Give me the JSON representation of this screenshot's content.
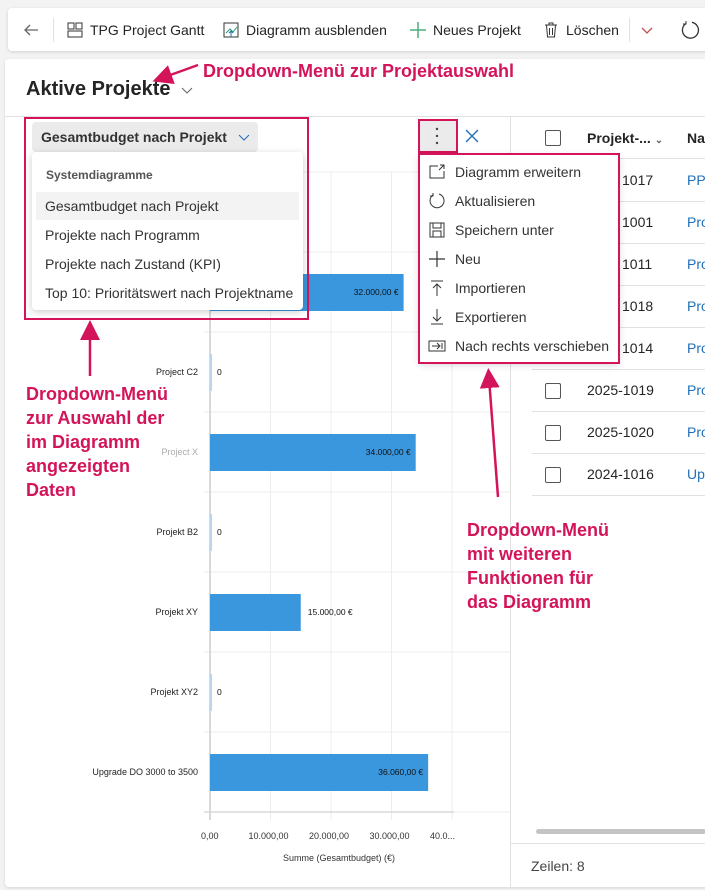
{
  "toolbar": {
    "items": [
      {
        "label": "TPG Project Gantt",
        "icon": "gantt-icon"
      },
      {
        "label": "Diagramm ausblenden",
        "icon": "chart-hide-icon"
      },
      {
        "label": "Neues Projekt",
        "icon": "plus-icon"
      },
      {
        "label": "Löschen",
        "icon": "trash-icon"
      }
    ]
  },
  "view": {
    "title": "Aktive Projekte"
  },
  "chart_selector": {
    "selected": "Gesamtbudget nach Projekt",
    "group_header": "Systemdiagramme",
    "options": [
      "Gesamtbudget nach Projekt",
      "Projekte nach Programm",
      "Projekte nach Zustand (KPI)",
      "Top 10: Prioritätswert nach Projektname"
    ]
  },
  "chart_menu": {
    "items": [
      {
        "label": "Diagramm erweitern",
        "icon": "expand-icon"
      },
      {
        "label": "Aktualisieren",
        "icon": "refresh-icon"
      },
      {
        "label": "Speichern unter",
        "icon": "save-icon"
      },
      {
        "label": "Neu",
        "icon": "plus-icon"
      },
      {
        "label": "Importieren",
        "icon": "import-icon"
      },
      {
        "label": "Exportieren",
        "icon": "export-icon"
      },
      {
        "label": "Nach rechts verschieben",
        "icon": "move-right-icon"
      }
    ]
  },
  "annotations": {
    "project_select": "Dropdown-Menü zur Projektauswahl",
    "data_select": [
      "Dropdown-Menü",
      "zur Auswahl der",
      "im Diagramm",
      "angezeigten",
      "Daten"
    ],
    "more_functions": [
      "Dropdown-Menü",
      "mit weiteren",
      "Funktionen für",
      "das Diagramm"
    ],
    "color": "#d4145a"
  },
  "chart_data": {
    "type": "bar",
    "orientation": "horizontal",
    "categories": [
      "",
      "Project C2",
      "Project X",
      "Projekt B2",
      "Projekt XY",
      "Projekt XY2",
      "Upgrade DO 3000 to 3500"
    ],
    "values": [
      32000,
      0,
      34000,
      0,
      15000,
      0,
      36060
    ],
    "data_labels": [
      "32.000,00 €",
      "0",
      "34.000,00 €",
      "0",
      "15.000,00 €",
      "0",
      "36.060,00 €"
    ],
    "xlabel": "Summe (Gesamtbudget) (€)",
    "xticks": [
      "0,00",
      "10.000,00",
      "20.000,00",
      "30.000,00",
      "40.0..."
    ],
    "xlim": [
      0,
      40000
    ],
    "grid": true,
    "bar_color": "#3a96dd"
  },
  "grid": {
    "columns": [
      "Projekt-...",
      "Na"
    ],
    "rows": [
      {
        "id": "1017",
        "name": "PPI"
      },
      {
        "id": "1001",
        "name": "Pro"
      },
      {
        "id": "1011",
        "name": "Pro"
      },
      {
        "id": "1018",
        "name": "Pro"
      },
      {
        "id": "1014",
        "name": "Pro"
      },
      {
        "id": "2025-1019",
        "name": "Pro"
      },
      {
        "id": "2025-1020",
        "name": "Pro"
      },
      {
        "id": "2024-1016",
        "name": "Up"
      }
    ],
    "footer": "Zeilen: 8"
  }
}
